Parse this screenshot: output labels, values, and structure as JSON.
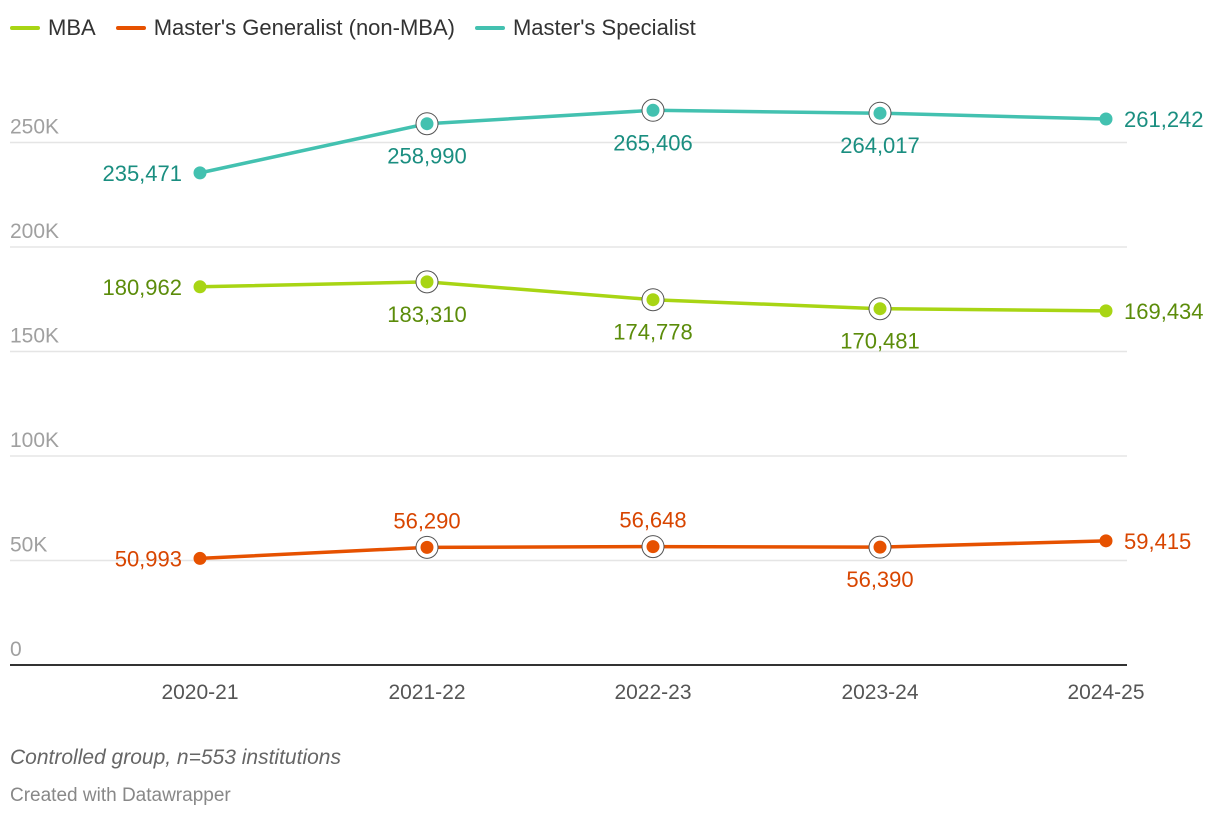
{
  "chart_data": {
    "type": "line",
    "title": "",
    "xlabel": "",
    "ylabel": "",
    "x": [
      "2020-21",
      "2021-22",
      "2022-23",
      "2023-24",
      "2024-25"
    ],
    "ylim": [
      0,
      270000
    ],
    "y_ticks": [
      0,
      50000,
      100000,
      150000,
      200000,
      250000
    ],
    "y_tick_labels": [
      "0",
      "50K",
      "100K",
      "150K",
      "200K",
      "250K"
    ],
    "grid": "horizontal",
    "legend_position": "top-left",
    "series": [
      {
        "name": "MBA",
        "color": "#a8d514",
        "label_color": "#5b8c0a",
        "values": [
          180962,
          183310,
          174778,
          170481,
          169434
        ],
        "labels": [
          "180,962",
          "183,310",
          "174,778",
          "170,481",
          "169,434"
        ]
      },
      {
        "name": "Master's Generalist (non-MBA)",
        "color": "#e65100",
        "label_color": "#d84500",
        "values": [
          50993,
          56290,
          56648,
          56390,
          59415
        ],
        "labels": [
          "50,993",
          "56,290",
          "56,648",
          "56,390",
          "59,415"
        ]
      },
      {
        "name": "Master's Specialist",
        "color": "#43c1b0",
        "label_color": "#1a8e80",
        "values": [
          235471,
          258990,
          265406,
          264017,
          261242
        ],
        "labels": [
          "235,471",
          "258,990",
          "265,406",
          "264,017",
          "261,242"
        ]
      }
    ]
  },
  "notes": {
    "caption": "Controlled group, n=553 institutions",
    "credit": "Created with Datawrapper"
  }
}
